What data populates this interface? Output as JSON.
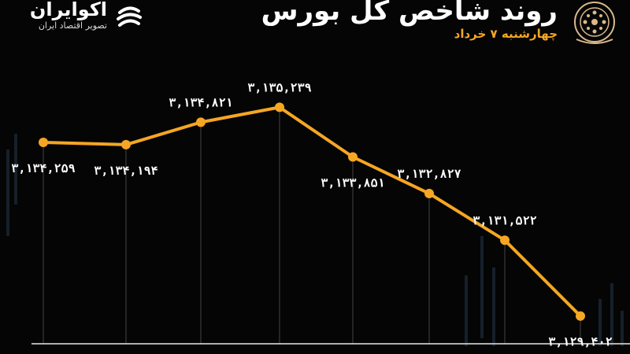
{
  "header": {
    "title": "روند شاخص کل بورس",
    "subtitle": "چهارشنبه ۷ خرداد"
  },
  "brand": {
    "name": "اکوایران",
    "tagline": "تصویر اقتصاد ایران"
  },
  "colors": {
    "background": "#050505",
    "line": "#f5a623",
    "text": "#ffffff",
    "gridline": "#555555"
  },
  "chart_data": {
    "type": "line",
    "x": [
      1,
      2,
      3,
      4,
      5,
      6,
      7,
      8
    ],
    "values": [
      3134259,
      3134194,
      3134821,
      3135239,
      3133851,
      3132827,
      3131522,
      3129402
    ],
    "data_labels": [
      "۳,۱۳۴,۲۵۹",
      "۳,۱۳۴,۱۹۴",
      "۳,۱۳۴,۸۲۱",
      "۳,۱۳۵,۲۳۹",
      "۳,۱۳۳,۸۵۱",
      "۳,۱۳۲,۸۲۷",
      "۳,۱۳۱,۵۲۲",
      "۳,۱۲۹,۴۰۲"
    ],
    "label_positions": [
      "below",
      "below",
      "above",
      "above",
      "below",
      "above",
      "above",
      "below"
    ],
    "ylim": [
      3129000,
      3135600
    ],
    "grid": "vertical drop lines",
    "legend": "none"
  }
}
